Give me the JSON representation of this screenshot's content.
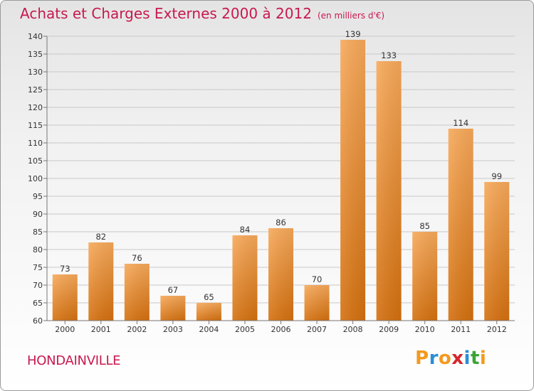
{
  "header": {
    "title": "Achats et Charges Externes 2000 à 2012",
    "unit": "(en milliers d'€)"
  },
  "commune": "HONDAINVILLE",
  "logo": {
    "text": "Proxiti",
    "letters": [
      "P",
      "r",
      "o",
      "x",
      "i",
      "t",
      "i"
    ],
    "colors": [
      "#f39a1e",
      "#2a8fd1",
      "#f39a1e",
      "#d6262c",
      "#2a8fd1",
      "#3aa436",
      "#f39a1e"
    ]
  },
  "chart_data": {
    "type": "bar",
    "title": "Achats et Charges Externes 2000 à 2012",
    "subtitle": "(en milliers d'€)",
    "categories": [
      "2000",
      "2001",
      "2002",
      "2003",
      "2004",
      "2005",
      "2006",
      "2007",
      "2008",
      "2009",
      "2010",
      "2011",
      "2012"
    ],
    "values": [
      73,
      82,
      76,
      67,
      65,
      84,
      86,
      70,
      139,
      133,
      85,
      114,
      99
    ],
    "value_labels": [
      "73",
      "82",
      "76",
      "67",
      "65",
      "84",
      "86",
      "70",
      "139",
      "133",
      "85",
      "114",
      "99"
    ],
    "ylim": [
      60,
      140
    ],
    "yticks": [
      60,
      65,
      70,
      75,
      80,
      85,
      90,
      95,
      100,
      105,
      110,
      115,
      120,
      125,
      130,
      135,
      140
    ],
    "ytick_labels": [
      "60",
      "65",
      "70",
      "75",
      "80",
      "85",
      "90",
      "95",
      "100",
      "105",
      "110",
      "115",
      "120",
      "125",
      "130",
      "135",
      "140"
    ],
    "xlabel": "",
    "ylabel": "",
    "grid": "horizontal",
    "legend": "none",
    "colors": {
      "bar_top": "#f7a95a",
      "bar_bottom": "#d4700f",
      "grid": "#c8c8c8",
      "axis": "#777777",
      "accent": "#c8194f"
    }
  }
}
